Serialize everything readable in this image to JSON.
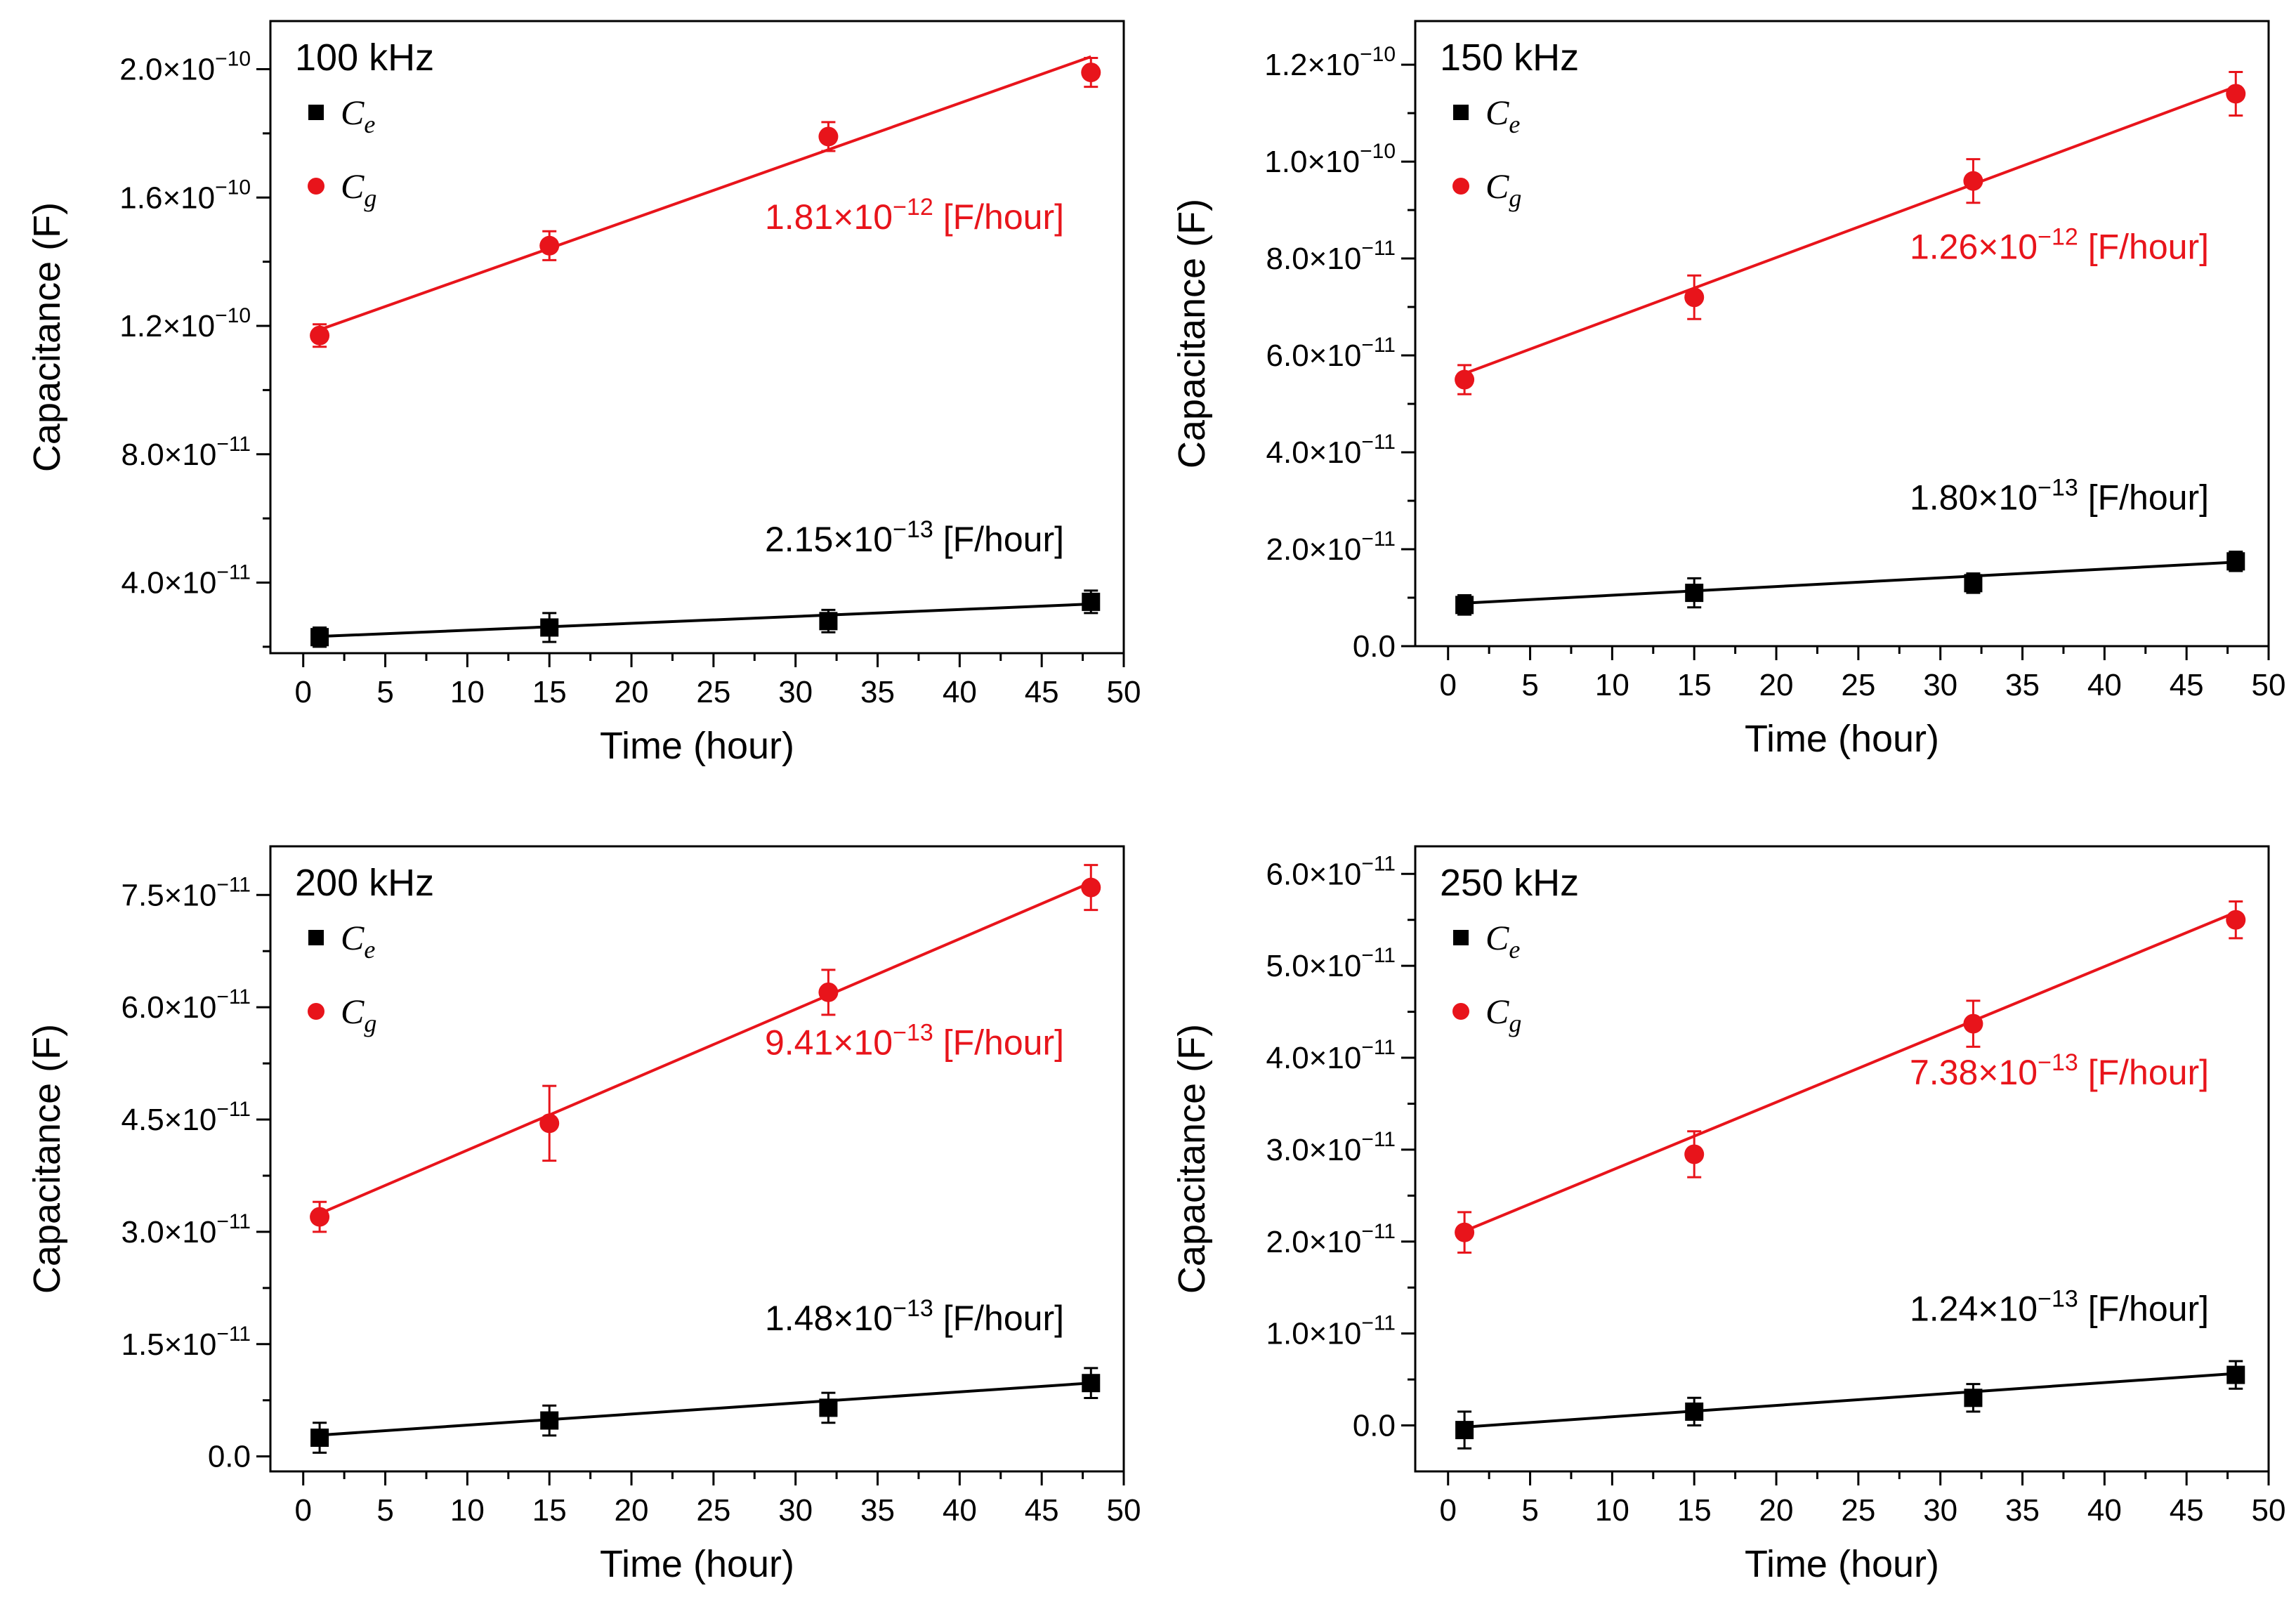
{
  "colors": {
    "ce": "#000000",
    "cg": "#e8141b",
    "axis": "#000000",
    "background": "#ffffff"
  },
  "icons": {
    "ce_marker": "square-marker",
    "cg_marker": "circle-marker"
  },
  "chart_data": [
    {
      "type": "scatter",
      "title": "100 kHz",
      "xlabel": "Time (hour)",
      "ylabel": "Capacitance (F)",
      "xlim": [
        -2,
        50
      ],
      "ylim": [
        1.8e-11,
        2.15e-10
      ],
      "xticks": [
        0,
        5,
        10,
        15,
        20,
        25,
        30,
        35,
        40,
        45,
        50
      ],
      "xtick_labels": [
        "0",
        "5",
        "10",
        "15",
        "20",
        "25",
        "30",
        "35",
        "40",
        "45",
        "50"
      ],
      "yticks": [
        4e-11,
        8e-11,
        1.2e-10,
        1.6e-10,
        2e-10
      ],
      "ytick_labels": [
        {
          "m": "4.0×10",
          "e": "−11"
        },
        {
          "m": "8.0×10",
          "e": "−11"
        },
        {
          "m": "1.2×10",
          "e": "−10"
        },
        {
          "m": "1.6×10",
          "e": "−10"
        },
        {
          "m": "2.0×10",
          "e": "−10"
        }
      ],
      "x": [
        1,
        15,
        32,
        48
      ],
      "series": [
        {
          "name": "C_e",
          "legend_base": "C",
          "legend_sub": "e",
          "marker": "square",
          "values": [
            2.3e-11,
            2.6e-11,
            2.8e-11,
            3.4e-11
          ],
          "errors": [
            3e-12,
            4.5e-12,
            3.5e-12,
            3.5e-12
          ],
          "fit": {
            "slope": 2.15e-13,
            "intercept": 2.3e-11
          },
          "annotation": {
            "m": "2.15×10",
            "e": "−13",
            "unit": " [F/hour]"
          }
        },
        {
          "name": "C_g",
          "legend_base": "C",
          "legend_sub": "g",
          "marker": "circle",
          "values": [
            1.17e-10,
            1.45e-10,
            1.79e-10,
            1.99e-10
          ],
          "errors": [
            3.5e-12,
            4.5e-12,
            4.5e-12,
            4.5e-12
          ],
          "fit": {
            "slope": 1.81e-12,
            "intercept": 1.17e-10
          },
          "annotation": {
            "m": "1.81×10",
            "e": "−12",
            "unit": " [F/hour]"
          }
        }
      ]
    },
    {
      "type": "scatter",
      "title": "150 kHz",
      "xlabel": "Time (hour)",
      "ylabel": "Capacitance (F)",
      "xlim": [
        -2,
        50
      ],
      "ylim": [
        0,
        1.29e-10
      ],
      "xticks": [
        0,
        5,
        10,
        15,
        20,
        25,
        30,
        35,
        40,
        45,
        50
      ],
      "xtick_labels": [
        "0",
        "5",
        "10",
        "15",
        "20",
        "25",
        "30",
        "35",
        "40",
        "45",
        "50"
      ],
      "yticks": [
        0,
        2e-11,
        4e-11,
        6e-11,
        8e-11,
        1e-10,
        1.2e-10
      ],
      "ytick_labels": [
        {
          "m": "0.0",
          "e": ""
        },
        {
          "m": "2.0×10",
          "e": "−11"
        },
        {
          "m": "4.0×10",
          "e": "−11"
        },
        {
          "m": "6.0×10",
          "e": "−11"
        },
        {
          "m": "8.0×10",
          "e": "−11"
        },
        {
          "m": "1.0×10",
          "e": "−10"
        },
        {
          "m": "1.2×10",
          "e": "−10"
        }
      ],
      "x": [
        1,
        15,
        32,
        48
      ],
      "series": [
        {
          "name": "C_e",
          "legend_base": "C",
          "legend_sub": "e",
          "marker": "square",
          "values": [
            8.5e-12,
            1.1e-11,
            1.3e-11,
            1.75e-11
          ],
          "errors": [
            2e-12,
            3e-12,
            2e-12,
            2e-12
          ],
          "fit": {
            "slope": 1.8e-13,
            "intercept": 8.7e-12
          },
          "annotation": {
            "m": "1.80×10",
            "e": "−13",
            "unit": " [F/hour]"
          }
        },
        {
          "name": "C_g",
          "legend_base": "C",
          "legend_sub": "g",
          "marker": "circle",
          "values": [
            5.5e-11,
            7.2e-11,
            9.6e-11,
            1.14e-10
          ],
          "errors": [
            3e-12,
            4.5e-12,
            4.5e-12,
            4.5e-12
          ],
          "fit": {
            "slope": 1.26e-12,
            "intercept": 5.5e-11
          },
          "annotation": {
            "m": "1.26×10",
            "e": "−12",
            "unit": " [F/hour]"
          }
        }
      ]
    },
    {
      "type": "scatter",
      "title": "200 kHz",
      "xlabel": "Time (hour)",
      "ylabel": "Capacitance (F)",
      "xlim": [
        -2,
        50
      ],
      "ylim": [
        -2e-12,
        8.15e-11
      ],
      "xticks": [
        0,
        5,
        10,
        15,
        20,
        25,
        30,
        35,
        40,
        45,
        50
      ],
      "xtick_labels": [
        "0",
        "5",
        "10",
        "15",
        "20",
        "25",
        "30",
        "35",
        "40",
        "45",
        "50"
      ],
      "yticks": [
        0,
        1.5e-11,
        3e-11,
        4.5e-11,
        6e-11,
        7.5e-11
      ],
      "ytick_labels": [
        {
          "m": "0.0",
          "e": ""
        },
        {
          "m": "1.5×10",
          "e": "−11"
        },
        {
          "m": "3.0×10",
          "e": "−11"
        },
        {
          "m": "4.5×10",
          "e": "−11"
        },
        {
          "m": "6.0×10",
          "e": "−11"
        },
        {
          "m": "7.5×10",
          "e": "−11"
        }
      ],
      "x": [
        1,
        15,
        32,
        48
      ],
      "series": [
        {
          "name": "C_e",
          "legend_base": "C",
          "legend_sub": "e",
          "marker": "square",
          "values": [
            2.5e-12,
            4.8e-12,
            6.5e-12,
            9.8e-12
          ],
          "errors": [
            2e-12,
            2e-12,
            2e-12,
            2e-12
          ],
          "fit": {
            "slope": 1.48e-13,
            "intercept": 2.7e-12
          },
          "annotation": {
            "m": "1.48×10",
            "e": "−13",
            "unit": " [F/hour]"
          }
        },
        {
          "name": "C_g",
          "legend_base": "C",
          "legend_sub": "g",
          "marker": "circle",
          "values": [
            3.2e-11,
            4.45e-11,
            6.2e-11,
            7.6e-11
          ],
          "errors": [
            2e-12,
            5e-12,
            3e-12,
            3e-12
          ],
          "fit": {
            "slope": 9.41e-13,
            "intercept": 3.15e-11
          },
          "annotation": {
            "m": "9.41×10",
            "e": "−13",
            "unit": " [F/hour]"
          }
        }
      ]
    },
    {
      "type": "scatter",
      "title": "250 kHz",
      "xlabel": "Time (hour)",
      "ylabel": "Capacitance (F)",
      "xlim": [
        -2,
        50
      ],
      "ylim": [
        -5e-12,
        6.3e-11
      ],
      "xticks": [
        0,
        5,
        10,
        15,
        20,
        25,
        30,
        35,
        40,
        45,
        50
      ],
      "xtick_labels": [
        "0",
        "5",
        "10",
        "15",
        "20",
        "25",
        "30",
        "35",
        "40",
        "45",
        "50"
      ],
      "yticks": [
        0,
        1e-11,
        2e-11,
        3e-11,
        4e-11,
        5e-11,
        6e-11
      ],
      "ytick_labels": [
        {
          "m": "0.0",
          "e": ""
        },
        {
          "m": "1.0×10",
          "e": "−11"
        },
        {
          "m": "2.0×10",
          "e": "−11"
        },
        {
          "m": "3.0×10",
          "e": "−11"
        },
        {
          "m": "4.0×10",
          "e": "−11"
        },
        {
          "m": "5.0×10",
          "e": "−11"
        },
        {
          "m": "6.0×10",
          "e": "−11"
        }
      ],
      "x": [
        1,
        15,
        32,
        48
      ],
      "series": [
        {
          "name": "C_e",
          "legend_base": "C",
          "legend_sub": "e",
          "marker": "square",
          "values": [
            -5e-13,
            1.5e-12,
            3e-12,
            5.5e-12
          ],
          "errors": [
            2e-12,
            1.5e-12,
            1.5e-12,
            1.5e-12
          ],
          "fit": {
            "slope": 1.24e-13,
            "intercept": -3e-13
          },
          "annotation": {
            "m": "1.24×10",
            "e": "−13",
            "unit": " [F/hour]"
          }
        },
        {
          "name": "C_g",
          "legend_base": "C",
          "legend_sub": "g",
          "marker": "circle",
          "values": [
            2.1e-11,
            2.95e-11,
            4.37e-11,
            5.5e-11
          ],
          "errors": [
            2.2e-12,
            2.5e-12,
            2.5e-12,
            2e-12
          ],
          "fit": {
            "slope": 7.38e-13,
            "intercept": 2.04e-11
          },
          "annotation": {
            "m": "7.38×10",
            "e": "−13",
            "unit": " [F/hour]"
          }
        }
      ]
    }
  ]
}
